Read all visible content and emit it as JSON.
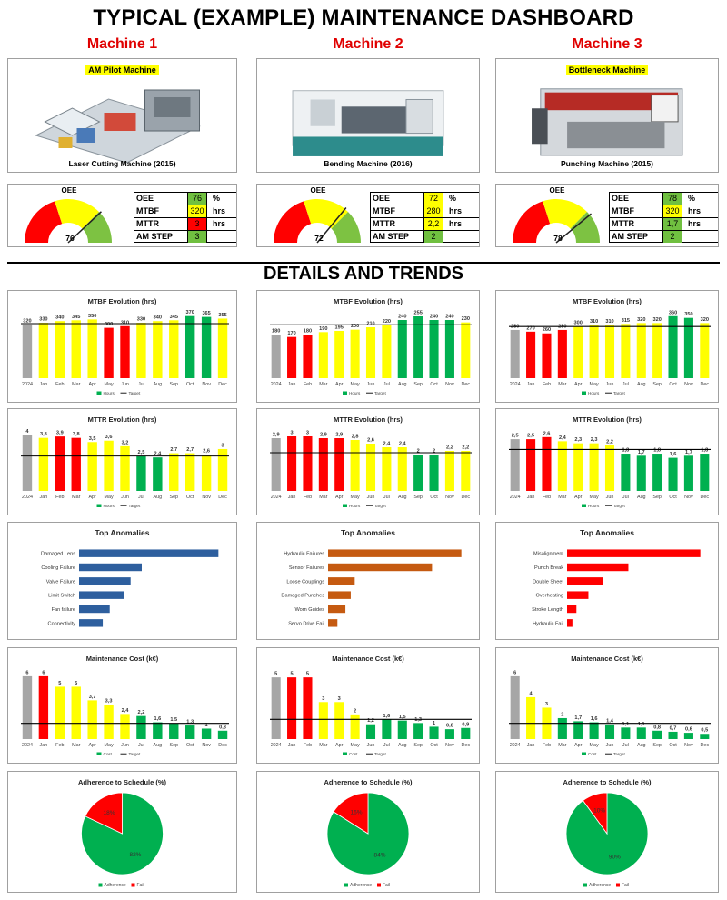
{
  "dashboard_title": "TYPICAL (EXAMPLE) MAINTENANCE DASHBOARD",
  "section_title": "DETAILS AND TRENDS",
  "colors": {
    "red": "#ff0000",
    "yellow": "#ffff00",
    "green": "#00b050",
    "grey": "#a6a6a6",
    "blue": "#2e5f9e",
    "orange": "#c55a11"
  },
  "months": [
    "2024",
    "Jan",
    "Feb",
    "Mar",
    "Apr",
    "May",
    "Jun",
    "Jul",
    "Aug",
    "Sep",
    "Oct",
    "Nov",
    "Dec"
  ],
  "kpi_labels": {
    "oee": "OEE",
    "mtbf": "MTBF",
    "mttr": "MTTR",
    "amstep": "AM STEP",
    "pct": "%",
    "hrs": "hrs"
  },
  "machines": [
    {
      "name": "Machine 1",
      "tag": "AM Pilot Machine",
      "caption": "Laser Cutting Machine (2015)",
      "gauge_title": "OEE",
      "oee_value": "76",
      "oee_number": 76,
      "kpi": {
        "oee": "76",
        "mtbf": "320",
        "mttr": "3",
        "amstep": "3"
      },
      "kpi_colors": {
        "oee": "#70c040",
        "mtbf": "#ffff00",
        "mttr": "#ff0000",
        "amstep": "#70c040"
      }
    },
    {
      "name": "Machine 2",
      "tag": "",
      "caption": "Bending Machine (2016)",
      "gauge_title": "OEE",
      "oee_value": "72",
      "oee_number": 72,
      "kpi": {
        "oee": "72",
        "mtbf": "280",
        "mttr": "2,2",
        "amstep": "2"
      },
      "kpi_colors": {
        "oee": "#ffff00",
        "mtbf": "#ffff00",
        "mttr": "#ffff00",
        "amstep": "#70c040"
      }
    },
    {
      "name": "Machine 3",
      "tag": "Bottleneck Machine",
      "caption": "Punching Machine (2015)",
      "gauge_title": "OEE",
      "oee_value": "78",
      "oee_number": 78,
      "kpi": {
        "oee": "78",
        "mtbf": "320",
        "mttr": "1,7",
        "amstep": "2"
      },
      "kpi_colors": {
        "oee": "#70c040",
        "mtbf": "#ffff00",
        "mttr": "#70c040",
        "amstep": "#70c040"
      }
    }
  ],
  "chart_data": [
    {
      "machine": "Machine 1",
      "type": "bar",
      "title": "MTBF Evolution (hrs)",
      "legend": [
        "Hours",
        "Target"
      ],
      "categories": [
        "2024",
        "Jan",
        "Feb",
        "Mar",
        "Apr",
        "May",
        "Jun",
        "Jul",
        "Aug",
        "Sep",
        "Oct",
        "Nov",
        "Dec"
      ],
      "values": [
        320,
        330,
        340,
        345,
        350,
        300,
        310,
        330,
        340,
        345,
        370,
        365,
        355
      ],
      "labels": [
        "320",
        "330",
        "340",
        "345",
        "350",
        "300",
        "310",
        "330",
        "340",
        "345",
        "370",
        "365",
        "355"
      ],
      "colors": [
        "grey",
        "yellow",
        "yellow",
        "yellow",
        "yellow",
        "red",
        "red",
        "yellow",
        "yellow",
        "yellow",
        "green",
        "green",
        "yellow"
      ],
      "target": 325,
      "ylim": [
        0,
        390
      ],
      "legend_position": "bottom"
    },
    {
      "machine": "Machine 2",
      "type": "bar",
      "title": "MTBF Evolution (hrs)",
      "legend": [
        "Hours",
        "Target"
      ],
      "categories": [
        "2024",
        "Jan",
        "Feb",
        "Mar",
        "Apr",
        "May",
        "Jun",
        "Jul",
        "Aug",
        "Sep",
        "Oct",
        "Nov",
        "Dec"
      ],
      "values": [
        180,
        170,
        180,
        190,
        195,
        200,
        210,
        220,
        240,
        255,
        240,
        240,
        230
      ],
      "labels": [
        "180",
        "170",
        "180",
        "190",
        "195",
        "200",
        "210",
        "220",
        "240",
        "255",
        "240",
        "240",
        "230"
      ],
      "colors": [
        "grey",
        "red",
        "red",
        "yellow",
        "yellow",
        "yellow",
        "yellow",
        "yellow",
        "green",
        "green",
        "green",
        "green",
        "yellow"
      ],
      "target": 220,
      "ylim": [
        0,
        270
      ],
      "legend_position": "bottom"
    },
    {
      "machine": "Machine 3",
      "type": "bar",
      "title": "MTBF Evolution (hrs)",
      "legend": [
        "Hours",
        "Target"
      ],
      "categories": [
        "2024",
        "Jan",
        "Feb",
        "Mar",
        "Apr",
        "May",
        "Jun",
        "Jul",
        "Aug",
        "Sep",
        "Oct",
        "Nov",
        "Dec"
      ],
      "values": [
        280,
        270,
        260,
        280,
        300,
        310,
        310,
        315,
        320,
        320,
        360,
        350,
        320
      ],
      "labels": [
        "280",
        "270",
        "260",
        "280",
        "300",
        "310",
        "310",
        "315",
        "320",
        "320",
        "360",
        "350",
        "320"
      ],
      "colors": [
        "grey",
        "red",
        "red",
        "red",
        "yellow",
        "yellow",
        "yellow",
        "yellow",
        "yellow",
        "yellow",
        "green",
        "green",
        "yellow"
      ],
      "target": 300,
      "ylim": [
        0,
        380
      ],
      "legend_position": "bottom"
    },
    {
      "machine": "Machine 1",
      "type": "bar",
      "title": "MTTR Evolution (hrs)",
      "legend": [
        "Hours",
        "Target"
      ],
      "categories": [
        "2024",
        "Jan",
        "Feb",
        "Mar",
        "Apr",
        "May",
        "Jun",
        "Jul",
        "Aug",
        "Sep",
        "Oct",
        "Nov",
        "Dec"
      ],
      "values": [
        4,
        3.8,
        3.9,
        3.8,
        3.5,
        3.6,
        3.2,
        2.5,
        2.4,
        2.7,
        2.7,
        2.6,
        3
      ],
      "labels": [
        "4",
        "3,8",
        "3,9",
        "3,8",
        "3,5",
        "3,6",
        "3,2",
        "2,5",
        "2,4",
        "2,7",
        "2,7",
        "2,6",
        "3"
      ],
      "colors": [
        "grey",
        "yellow",
        "red",
        "red",
        "yellow",
        "yellow",
        "yellow",
        "green",
        "green",
        "yellow",
        "yellow",
        "yellow",
        "yellow"
      ],
      "target": 2.5,
      "ylim": [
        0,
        4.3
      ],
      "legend_position": "bottom"
    },
    {
      "machine": "Machine 2",
      "type": "bar",
      "title": "MTTR Evolution (hrs)",
      "legend": [
        "Hours",
        "Target"
      ],
      "categories": [
        "2024",
        "Jan",
        "Feb",
        "Mar",
        "Apr",
        "May",
        "Jun",
        "Jul",
        "Aug",
        "Sep",
        "Oct",
        "Nov",
        "Dec"
      ],
      "values": [
        2.9,
        3,
        3,
        2.9,
        2.9,
        2.8,
        2.6,
        2.4,
        2.4,
        2,
        2,
        2.2,
        2.2
      ],
      "labels": [
        "2,9",
        "3",
        "3",
        "2,9",
        "2,9",
        "2,8",
        "2,6",
        "2,4",
        "2,4",
        "2",
        "2",
        "2,2",
        "2,2"
      ],
      "colors": [
        "grey",
        "red",
        "red",
        "red",
        "red",
        "yellow",
        "yellow",
        "yellow",
        "yellow",
        "green",
        "green",
        "yellow",
        "yellow"
      ],
      "target": 2.1,
      "ylim": [
        0,
        3.3
      ],
      "legend_position": "bottom"
    },
    {
      "machine": "Machine 3",
      "type": "bar",
      "title": "MTTR Evolution (hrs)",
      "legend": [
        "Hours",
        "Target"
      ],
      "categories": [
        "2024",
        "Jan",
        "Feb",
        "Mar",
        "Apr",
        "May",
        "Jun",
        "Jul",
        "Aug",
        "Sep",
        "Oct",
        "Nov",
        "Dec"
      ],
      "values": [
        2.5,
        2.5,
        2.6,
        2.4,
        2.3,
        2.3,
        2.2,
        1.8,
        1.7,
        1.8,
        1.6,
        1.7,
        1.8
      ],
      "labels": [
        "2,5",
        "2,5",
        "2,6",
        "2,4",
        "2,3",
        "2,3",
        "2,2",
        "1,8",
        "1,7",
        "1,8",
        "1,6",
        "1,7",
        "1,8"
      ],
      "colors": [
        "grey",
        "red",
        "red",
        "yellow",
        "yellow",
        "yellow",
        "yellow",
        "green",
        "green",
        "green",
        "green",
        "green",
        "green"
      ],
      "target": 2.0,
      "ylim": [
        0,
        2.9
      ],
      "legend_position": "bottom"
    },
    {
      "machine": "Machine 1",
      "type": "hbar",
      "title": "Top Anomalies",
      "color": "blue",
      "categories": [
        "Damaged Lens",
        "Cooling Failure",
        "Valve Failure",
        "Limit Switch",
        "Fan failure",
        "Connectivity"
      ],
      "values": [
        100,
        45,
        37,
        32,
        22,
        17
      ],
      "xlim": [
        0,
        105
      ]
    },
    {
      "machine": "Machine 2",
      "type": "hbar",
      "title": "Top Anomalies",
      "color": "orange",
      "categories": [
        "Hydraulic Failures",
        "Sensor Failures",
        "Loose Couplings",
        "Damaged Punches",
        "Worn Guides",
        "Servo Drive Fail"
      ],
      "values": [
        100,
        78,
        20,
        17,
        13,
        7
      ],
      "xlim": [
        0,
        105
      ]
    },
    {
      "machine": "Machine 3",
      "type": "hbar",
      "title": "Top Anomalies",
      "color": "red",
      "categories": [
        "Misalignment",
        "Punch Break",
        "Double Sheet",
        "Overheating",
        "Stroke Length",
        "Hydraulic Fail"
      ],
      "values": [
        100,
        46,
        27,
        16,
        7,
        4
      ],
      "xlim": [
        0,
        105
      ]
    },
    {
      "machine": "Machine 1",
      "type": "bar",
      "title": "Maintenance Cost (k€)",
      "legend": [
        "Cost",
        "Target"
      ],
      "categories": [
        "2024",
        "Jan",
        "Feb",
        "Mar",
        "Apr",
        "May",
        "Jun",
        "Jul",
        "Aug",
        "Sep",
        "Oct",
        "Nov",
        "Dec"
      ],
      "values": [
        6,
        6,
        5,
        5,
        3.7,
        3.3,
        2.4,
        2.2,
        1.6,
        1.5,
        1.3,
        1,
        0.8
      ],
      "labels": [
        "6",
        "6",
        "5",
        "5",
        "3,7",
        "3,3",
        "2,4",
        "2,2",
        "1,6",
        "1,5",
        "1,3",
        "1",
        "0,8"
      ],
      "colors": [
        "grey",
        "red",
        "yellow",
        "yellow",
        "yellow",
        "yellow",
        "yellow",
        "green",
        "green",
        "green",
        "green",
        "green",
        "green"
      ],
      "target": 1.5,
      "ylim": [
        0,
        6.6
      ],
      "legend_position": "bottom"
    },
    {
      "machine": "Machine 2",
      "type": "bar",
      "title": "Maintenance Cost (k€)",
      "legend": [
        "Cost",
        "Target"
      ],
      "categories": [
        "2024",
        "Jan",
        "Feb",
        "Mar",
        "Apr",
        "May",
        "Jun",
        "Jul",
        "Aug",
        "Sep",
        "Oct",
        "Nov",
        "Dec"
      ],
      "values": [
        5,
        5,
        5,
        3,
        3,
        2,
        1.2,
        1.6,
        1.5,
        1.3,
        1,
        0.8,
        0.9
      ],
      "labels": [
        "5",
        "5",
        "5",
        "3",
        "3",
        "2",
        "1,2",
        "1,6",
        "1,5",
        "1,3",
        "1",
        "0,8",
        "0,9"
      ],
      "colors": [
        "grey",
        "red",
        "red",
        "yellow",
        "yellow",
        "yellow",
        "green",
        "green",
        "green",
        "green",
        "green",
        "green",
        "green"
      ],
      "target": 1.6,
      "ylim": [
        0,
        5.6
      ],
      "legend_position": "bottom"
    },
    {
      "machine": "Machine 3",
      "type": "bar",
      "title": "Maintenance Cost (k€)",
      "legend": [
        "Cost",
        "Target"
      ],
      "categories": [
        "2024",
        "Jan",
        "Feb",
        "Mar",
        "Apr",
        "May",
        "Jun",
        "Jul",
        "Aug",
        "Sep",
        "Oct",
        "Nov",
        "Dec"
      ],
      "values": [
        6,
        4,
        3,
        2,
        1.7,
        1.6,
        1.4,
        1.1,
        1.1,
        0.8,
        0.7,
        0.6,
        0.5
      ],
      "labels": [
        "6",
        "4",
        "3",
        "2",
        "1,7",
        "1,6",
        "1,4",
        "1,1",
        "1,1",
        "0,8",
        "0,7",
        "0,6",
        "0,5"
      ],
      "colors": [
        "grey",
        "yellow",
        "yellow",
        "green",
        "green",
        "green",
        "green",
        "green",
        "green",
        "green",
        "green",
        "green",
        "green"
      ],
      "target": 1.5,
      "ylim": [
        0,
        6.6
      ],
      "legend_position": "bottom"
    },
    {
      "machine": "Machine 1",
      "type": "pie",
      "title": "Adherence to Schedule (%)",
      "legend": [
        "Adherence",
        "Fail"
      ],
      "values": [
        82,
        18
      ],
      "labels": [
        "82%",
        "18%"
      ],
      "colors": [
        "green",
        "red"
      ],
      "legend_position": "bottom"
    },
    {
      "machine": "Machine 2",
      "type": "pie",
      "title": "Adherence to Schedule (%)",
      "legend": [
        "Adherence",
        "Fail"
      ],
      "values": [
        84,
        16
      ],
      "labels": [
        "84%",
        "16%"
      ],
      "colors": [
        "green",
        "red"
      ],
      "legend_position": "bottom"
    },
    {
      "machine": "Machine 3",
      "type": "pie",
      "title": "Adherence to Schedule (%)",
      "legend": [
        "Adherence",
        "Fail"
      ],
      "values": [
        90,
        10
      ],
      "labels": [
        "90%",
        "10%"
      ],
      "colors": [
        "green",
        "red"
      ],
      "legend_position": "bottom"
    }
  ]
}
